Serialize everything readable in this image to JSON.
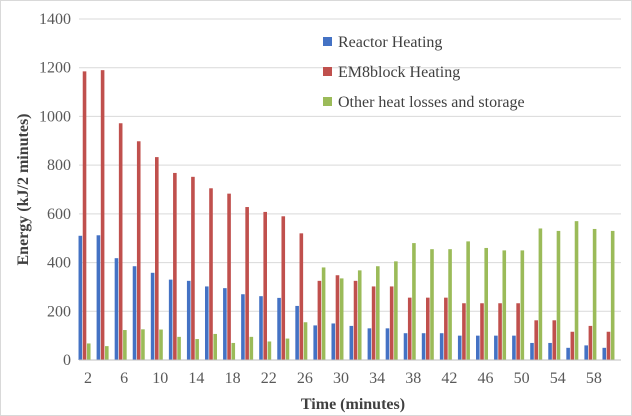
{
  "chart_data": {
    "type": "bar",
    "title": "",
    "xlabel": "Time (minutes)",
    "ylabel": "Energy (kJ/2 minutes)",
    "ylim": [
      0,
      1400
    ],
    "yticks": [
      0,
      200,
      400,
      600,
      800,
      1000,
      1200,
      1400
    ],
    "grid": true,
    "legend_position": "top-right",
    "categories": [
      2,
      4,
      6,
      8,
      10,
      12,
      14,
      16,
      18,
      20,
      22,
      24,
      26,
      28,
      30,
      32,
      34,
      36,
      38,
      40,
      42,
      44,
      46,
      48,
      50,
      52,
      54,
      56,
      58,
      60
    ],
    "xtick_labels": [
      "2",
      "6",
      "10",
      "14",
      "18",
      "22",
      "26",
      "30",
      "34",
      "38",
      "42",
      "46",
      "50",
      "54",
      "58"
    ],
    "series": [
      {
        "name": "Reactor Heating",
        "color": "#4472C4",
        "values": [
          510,
          512,
          418,
          385,
          358,
          330,
          325,
          302,
          295,
          270,
          262,
          255,
          222,
          142,
          150,
          140,
          130,
          130,
          110,
          110,
          110,
          100,
          100,
          100,
          100,
          70,
          70,
          50,
          60,
          50
        ]
      },
      {
        "name": "EM8block Heating",
        "color": "#C0504D",
        "values": [
          1185,
          1190,
          972,
          898,
          833,
          768,
          752,
          705,
          683,
          628,
          608,
          590,
          520,
          325,
          348,
          325,
          302,
          302,
          256,
          256,
          256,
          233,
          233,
          233,
          233,
          163,
          163,
          116,
          140,
          116
        ]
      },
      {
        "name": "Other heat losses and storage",
        "color": "#9BBB59",
        "values": [
          68,
          57,
          123,
          126,
          125,
          95,
          86,
          107,
          70,
          95,
          76,
          88,
          155,
          380,
          335,
          368,
          385,
          405,
          480,
          455,
          455,
          487,
          460,
          450,
          450,
          540,
          530,
          570,
          538,
          530
        ]
      }
    ]
  }
}
